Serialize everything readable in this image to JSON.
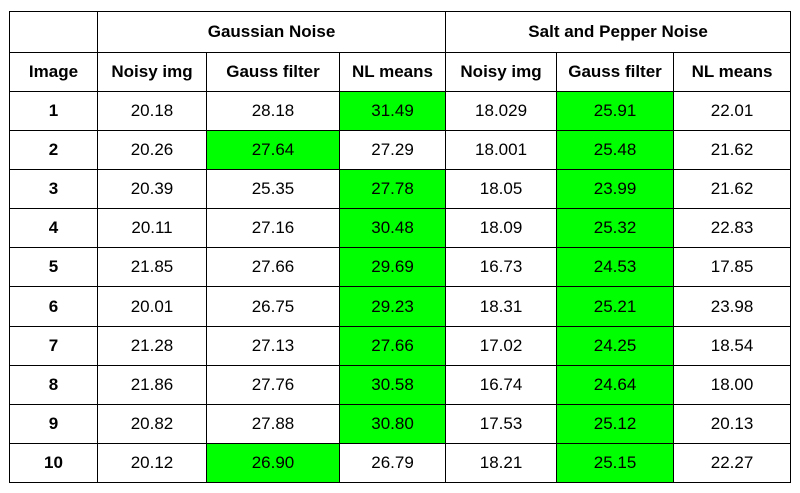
{
  "groups": [
    {
      "label": "Gaussian Noise"
    },
    {
      "label": "Salt and Pepper Noise"
    }
  ],
  "columns": [
    "Image",
    "Noisy img",
    "Gauss filter",
    "NL means",
    "Noisy img",
    "Gauss filter",
    "NL means"
  ],
  "highlight_color": "#00ff00",
  "rows": [
    {
      "image": "1",
      "cells": [
        "20.18",
        "28.18",
        "31.49",
        "18.029",
        "25.91",
        "22.01"
      ],
      "highlight": [
        2,
        4
      ]
    },
    {
      "image": "2",
      "cells": [
        "20.26",
        "27.64",
        "27.29",
        "18.001",
        "25.48",
        "21.62"
      ],
      "highlight": [
        1,
        4
      ]
    },
    {
      "image": "3",
      "cells": [
        "20.39",
        "25.35",
        "27.78",
        "18.05",
        "23.99",
        "21.62"
      ],
      "highlight": [
        2,
        4
      ]
    },
    {
      "image": "4",
      "cells": [
        "20.11",
        "27.16",
        "30.48",
        "18.09",
        "25.32",
        "22.83"
      ],
      "highlight": [
        2,
        4
      ]
    },
    {
      "image": "5",
      "cells": [
        "21.85",
        "27.66",
        "29.69",
        "16.73",
        "24.53",
        "17.85"
      ],
      "highlight": [
        2,
        4
      ]
    },
    {
      "image": "6",
      "cells": [
        "20.01",
        "26.75",
        "29.23",
        "18.31",
        "25.21",
        "23.98"
      ],
      "highlight": [
        2,
        4
      ]
    },
    {
      "image": "7",
      "cells": [
        "21.28",
        "27.13",
        "27.66",
        "17.02",
        "24.25",
        "18.54"
      ],
      "highlight": [
        2,
        4
      ]
    },
    {
      "image": "8",
      "cells": [
        "21.86",
        "27.76",
        "30.58",
        "16.74",
        "24.64",
        "18.00"
      ],
      "highlight": [
        2,
        4
      ]
    },
    {
      "image": "9",
      "cells": [
        "20.82",
        "27.88",
        "30.80",
        "17.53",
        "25.12",
        "20.13"
      ],
      "highlight": [
        2,
        4
      ]
    },
    {
      "image": "10",
      "cells": [
        "20.12",
        "26.90",
        "26.79",
        "18.21",
        "25.15",
        "22.27"
      ],
      "highlight": [
        1,
        4
      ]
    }
  ]
}
